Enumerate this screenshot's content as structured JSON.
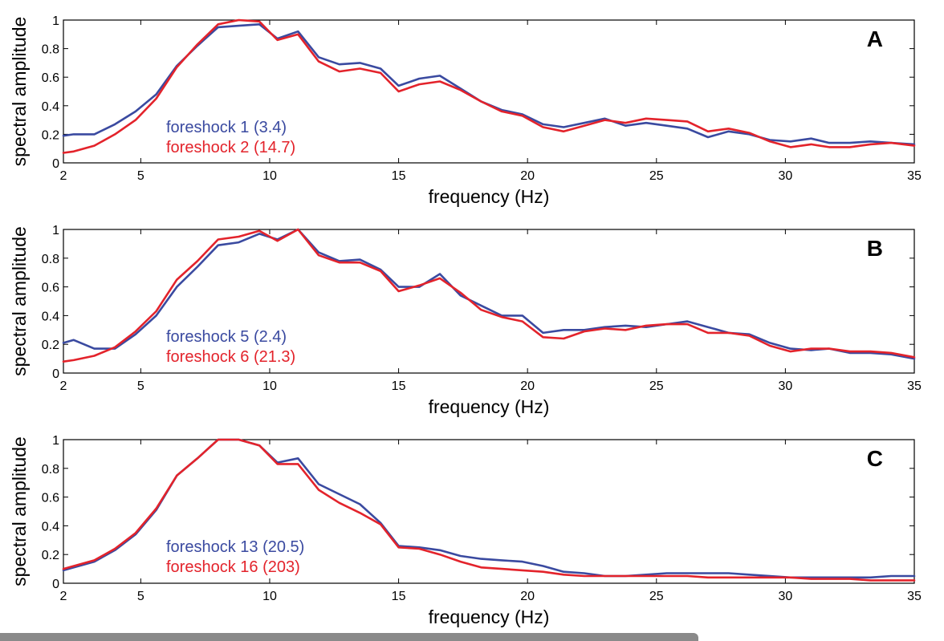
{
  "colors": {
    "series_a": "#3a4aa0",
    "series_b": "#e3232b",
    "axis": "#000000",
    "scrollbar": "#8a8a8a"
  },
  "chart_data": [
    {
      "type": "line",
      "panel_label": "A",
      "xlabel": "frequency (Hz)",
      "ylabel": "spectral amplitude",
      "xlim": [
        2,
        35
      ],
      "ylim": [
        0,
        1
      ],
      "xticks": [
        2,
        5,
        10,
        15,
        20,
        25,
        30,
        35
      ],
      "yticks": [
        0,
        0.2,
        0.4,
        0.6,
        0.8,
        1
      ],
      "ytick_labels": [
        "0",
        "0.2",
        "0.4",
        "0.6",
        "0.8",
        "1"
      ],
      "grid": false,
      "legend_position": "left",
      "x": [
        2.0,
        2.4,
        3.2,
        4.0,
        4.8,
        5.6,
        6.4,
        7.2,
        8.0,
        8.8,
        9.6,
        10.3,
        11.1,
        11.9,
        12.7,
        13.5,
        14.3,
        15.0,
        15.8,
        16.6,
        17.4,
        18.2,
        19.0,
        19.8,
        20.6,
        21.4,
        22.2,
        23.0,
        23.8,
        24.6,
        25.4,
        26.2,
        27.0,
        27.8,
        28.6,
        29.4,
        30.2,
        31.0,
        31.7,
        32.5,
        33.3,
        34.1,
        35.0
      ],
      "series": [
        {
          "name": "foreshock 1 (3.4)",
          "color": "#3a4aa0",
          "values": [
            0.19,
            0.2,
            0.2,
            0.27,
            0.36,
            0.48,
            0.68,
            0.82,
            0.95,
            0.96,
            0.97,
            0.87,
            0.92,
            0.74,
            0.69,
            0.7,
            0.66,
            0.54,
            0.59,
            0.61,
            0.52,
            0.43,
            0.37,
            0.34,
            0.27,
            0.25,
            0.28,
            0.31,
            0.26,
            0.28,
            0.26,
            0.24,
            0.18,
            0.22,
            0.2,
            0.16,
            0.15,
            0.17,
            0.14,
            0.14,
            0.15,
            0.14,
            0.13
          ]
        },
        {
          "name": "foreshock 2 (14.7)",
          "color": "#e3232b",
          "values": [
            0.07,
            0.08,
            0.12,
            0.2,
            0.3,
            0.45,
            0.67,
            0.83,
            0.97,
            1.0,
            0.99,
            0.86,
            0.9,
            0.71,
            0.64,
            0.66,
            0.63,
            0.5,
            0.55,
            0.57,
            0.51,
            0.43,
            0.36,
            0.33,
            0.25,
            0.22,
            0.26,
            0.3,
            0.28,
            0.31,
            0.3,
            0.29,
            0.22,
            0.24,
            0.21,
            0.15,
            0.11,
            0.13,
            0.11,
            0.11,
            0.13,
            0.14,
            0.12
          ]
        }
      ]
    },
    {
      "type": "line",
      "panel_label": "B",
      "xlabel": "frequency (Hz)",
      "ylabel": "spectral amplitude",
      "xlim": [
        2,
        35
      ],
      "ylim": [
        0,
        1
      ],
      "xticks": [
        2,
        5,
        10,
        15,
        20,
        25,
        30,
        35
      ],
      "yticks": [
        0,
        0.2,
        0.4,
        0.6,
        0.8,
        1
      ],
      "ytick_labels": [
        "0",
        "0.2",
        "0.4",
        "0.6",
        "0.8",
        "1"
      ],
      "grid": false,
      "legend_position": "left",
      "x": [
        2.0,
        2.4,
        3.2,
        4.0,
        4.8,
        5.6,
        6.4,
        7.2,
        8.0,
        8.8,
        9.6,
        10.3,
        11.1,
        11.9,
        12.7,
        13.5,
        14.3,
        15.0,
        15.8,
        16.6,
        17.4,
        18.2,
        19.0,
        19.8,
        20.6,
        21.4,
        22.2,
        23.0,
        23.8,
        24.6,
        25.4,
        26.2,
        27.0,
        27.8,
        28.6,
        29.4,
        30.2,
        31.0,
        31.7,
        32.5,
        33.3,
        34.1,
        35.0
      ],
      "series": [
        {
          "name": "foreshock 5 (2.4)",
          "color": "#3a4aa0",
          "values": [
            0.21,
            0.23,
            0.17,
            0.17,
            0.27,
            0.4,
            0.6,
            0.74,
            0.89,
            0.91,
            0.97,
            0.93,
            1.0,
            0.84,
            0.78,
            0.79,
            0.72,
            0.6,
            0.6,
            0.69,
            0.54,
            0.47,
            0.4,
            0.4,
            0.28,
            0.3,
            0.3,
            0.32,
            0.33,
            0.32,
            0.34,
            0.36,
            0.32,
            0.28,
            0.27,
            0.21,
            0.17,
            0.16,
            0.17,
            0.14,
            0.14,
            0.13,
            0.1
          ]
        },
        {
          "name": "foreshock 6 (21.3)",
          "color": "#e3232b",
          "values": [
            0.08,
            0.09,
            0.12,
            0.18,
            0.29,
            0.43,
            0.65,
            0.78,
            0.93,
            0.95,
            0.99,
            0.92,
            1.0,
            0.82,
            0.77,
            0.77,
            0.71,
            0.57,
            0.61,
            0.66,
            0.56,
            0.44,
            0.39,
            0.36,
            0.25,
            0.24,
            0.29,
            0.31,
            0.3,
            0.33,
            0.34,
            0.34,
            0.28,
            0.28,
            0.26,
            0.19,
            0.15,
            0.17,
            0.17,
            0.15,
            0.15,
            0.14,
            0.11
          ]
        }
      ]
    },
    {
      "type": "line",
      "panel_label": "C",
      "xlabel": "frequency (Hz)",
      "ylabel": "spectral amplitude",
      "xlim": [
        2,
        35
      ],
      "ylim": [
        0,
        1
      ],
      "xticks": [
        2,
        5,
        10,
        15,
        20,
        25,
        30,
        35
      ],
      "yticks": [
        0,
        0.2,
        0.4,
        0.6,
        0.8,
        1
      ],
      "ytick_labels": [
        "0",
        "0.2",
        "0.4",
        "0.6",
        "0.8",
        "1"
      ],
      "grid": false,
      "legend_position": "left",
      "x": [
        2.0,
        3.2,
        4.0,
        4.8,
        5.6,
        6.4,
        7.2,
        8.0,
        8.8,
        9.6,
        10.3,
        11.1,
        11.9,
        12.7,
        13.5,
        14.3,
        15.0,
        15.8,
        16.6,
        17.4,
        18.2,
        19.0,
        19.8,
        20.6,
        21.4,
        22.2,
        23.0,
        23.8,
        24.6,
        25.4,
        26.2,
        27.0,
        27.8,
        28.6,
        29.4,
        30.2,
        31.0,
        31.7,
        32.5,
        33.3,
        34.1,
        35.0
      ],
      "series": [
        {
          "name": "foreshock 13 (20.5)",
          "color": "#3a4aa0",
          "values": [
            0.09,
            0.15,
            0.23,
            0.34,
            0.51,
            0.75,
            0.87,
            1.0,
            1.0,
            0.96,
            0.84,
            0.87,
            0.69,
            0.62,
            0.55,
            0.42,
            0.26,
            0.25,
            0.23,
            0.19,
            0.17,
            0.16,
            0.15,
            0.12,
            0.08,
            0.07,
            0.05,
            0.05,
            0.06,
            0.07,
            0.07,
            0.07,
            0.07,
            0.06,
            0.05,
            0.04,
            0.04,
            0.04,
            0.04,
            0.04,
            0.05,
            0.05
          ]
        },
        {
          "name": "foreshock 16 (203)",
          "color": "#e3232b",
          "values": [
            0.1,
            0.16,
            0.24,
            0.35,
            0.52,
            0.75,
            0.87,
            1.0,
            1.0,
            0.96,
            0.83,
            0.83,
            0.65,
            0.56,
            0.49,
            0.41,
            0.25,
            0.24,
            0.2,
            0.15,
            0.11,
            0.1,
            0.09,
            0.08,
            0.06,
            0.05,
            0.05,
            0.05,
            0.05,
            0.05,
            0.05,
            0.04,
            0.04,
            0.04,
            0.04,
            0.04,
            0.03,
            0.03,
            0.03,
            0.02,
            0.02,
            0.02
          ]
        }
      ]
    }
  ]
}
